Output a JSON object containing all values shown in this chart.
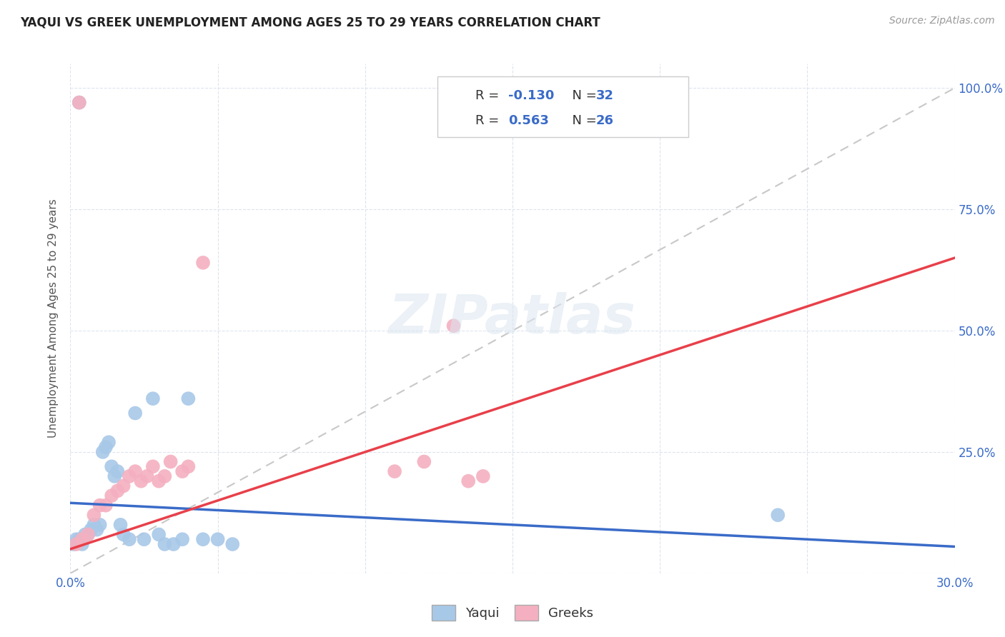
{
  "title": "YAQUI VS GREEK UNEMPLOYMENT AMONG AGES 25 TO 29 YEARS CORRELATION CHART",
  "source": "Source: ZipAtlas.com",
  "ylabel": "Unemployment Among Ages 25 to 29 years",
  "xlim": [
    0.0,
    0.3
  ],
  "ylim": [
    0.0,
    1.05
  ],
  "xticks": [
    0.0,
    0.05,
    0.1,
    0.15,
    0.2,
    0.25,
    0.3
  ],
  "xtick_labels": [
    "0.0%",
    "",
    "",
    "",
    "",
    "",
    "30.0%"
  ],
  "ytick_labels_right": [
    "",
    "25.0%",
    "50.0%",
    "75.0%",
    "100.0%"
  ],
  "ytick_vals_right": [
    0.0,
    0.25,
    0.5,
    0.75,
    1.0
  ],
  "yaqui_color": "#a8c8e8",
  "greeks_color": "#f4b0c0",
  "yaqui_line_color": "#3a6bc8",
  "greeks_line_color": "#e8404a",
  "diagonal_color": "#c8c8c8",
  "legend_R_yaqui": "-0.130",
  "legend_N_yaqui": "32",
  "legend_R_greeks": "0.563",
  "legend_N_greeks": "26",
  "watermark": "ZIPatlas",
  "yaqui_x": [
    0.001,
    0.002,
    0.003,
    0.004,
    0.005,
    0.006,
    0.007,
    0.008,
    0.009,
    0.01,
    0.011,
    0.012,
    0.013,
    0.014,
    0.015,
    0.016,
    0.017,
    0.018,
    0.02,
    0.022,
    0.025,
    0.028,
    0.03,
    0.032,
    0.035,
    0.038,
    0.04,
    0.045,
    0.05,
    0.055,
    0.24,
    0.003
  ],
  "yaqui_y": [
    0.06,
    0.07,
    0.07,
    0.06,
    0.08,
    0.08,
    0.09,
    0.1,
    0.09,
    0.1,
    0.25,
    0.26,
    0.27,
    0.22,
    0.2,
    0.21,
    0.1,
    0.08,
    0.07,
    0.33,
    0.07,
    0.36,
    0.08,
    0.06,
    0.06,
    0.07,
    0.36,
    0.07,
    0.07,
    0.06,
    0.12,
    0.97
  ],
  "greeks_x": [
    0.002,
    0.004,
    0.006,
    0.008,
    0.01,
    0.012,
    0.014,
    0.016,
    0.018,
    0.02,
    0.022,
    0.024,
    0.026,
    0.028,
    0.03,
    0.032,
    0.034,
    0.038,
    0.04,
    0.045,
    0.11,
    0.12,
    0.13,
    0.135,
    0.14,
    0.003
  ],
  "greeks_y": [
    0.06,
    0.07,
    0.08,
    0.12,
    0.14,
    0.14,
    0.16,
    0.17,
    0.18,
    0.2,
    0.21,
    0.19,
    0.2,
    0.22,
    0.19,
    0.2,
    0.23,
    0.21,
    0.22,
    0.64,
    0.21,
    0.23,
    0.51,
    0.19,
    0.2,
    0.97
  ],
  "yaqui_line_x": [
    0.0,
    0.3
  ],
  "yaqui_line_y": [
    0.145,
    0.055
  ],
  "greeks_line_x": [
    0.0,
    0.3
  ],
  "greeks_line_y": [
    0.05,
    0.65
  ]
}
